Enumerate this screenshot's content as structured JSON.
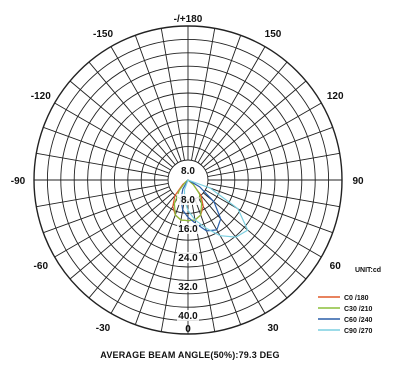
{
  "chart_data": {
    "type": "polar-line",
    "angle_labels": [
      {
        "deg": 180,
        "text": "-/+180"
      },
      {
        "deg": -150,
        "text": "-150"
      },
      {
        "deg": 150,
        "text": "150"
      },
      {
        "deg": -120,
        "text": "-120"
      },
      {
        "deg": 120,
        "text": "120"
      },
      {
        "deg": -90,
        "text": "-90"
      },
      {
        "deg": 90,
        "text": "90"
      },
      {
        "deg": -60,
        "text": "-60"
      },
      {
        "deg": 60,
        "text": "60"
      },
      {
        "deg": -30,
        "text": "-30"
      },
      {
        "deg": 30,
        "text": "30"
      },
      {
        "deg": 0,
        "text": "0"
      }
    ],
    "radial_labels": [
      "8.0",
      "8.0",
      "16.0",
      "24.0",
      "32.0",
      "40.0"
    ],
    "radial_max": 40,
    "rings": 10,
    "spokes_step_deg": 10,
    "unit_label": "UNIT:cd",
    "caption": "AVERAGE BEAM ANGLE(50%):79.3 DEG",
    "series": [
      {
        "name": "C0  /180",
        "color": "#e05a2a",
        "points": [
          [
            -50,
            2
          ],
          [
            -40,
            6
          ],
          [
            -30,
            9
          ],
          [
            -20,
            11
          ],
          [
            -10,
            12
          ],
          [
            0,
            12
          ],
          [
            10,
            12
          ],
          [
            20,
            11
          ],
          [
            30,
            9
          ],
          [
            40,
            6
          ],
          [
            50,
            2
          ]
        ]
      },
      {
        "name": "C30 /210",
        "color": "#8bbf3a",
        "points": [
          [
            -50,
            1
          ],
          [
            -40,
            4
          ],
          [
            -30,
            8
          ],
          [
            -20,
            11
          ],
          [
            -10,
            12
          ],
          [
            0,
            12
          ],
          [
            10,
            12
          ],
          [
            20,
            11
          ],
          [
            30,
            8
          ],
          [
            40,
            5
          ],
          [
            50,
            2
          ]
        ]
      },
      {
        "name": "C60 /240",
        "color": "#2a5fa8",
        "points": [
          [
            -30,
            3
          ],
          [
            -20,
            6
          ],
          [
            -10,
            9
          ],
          [
            0,
            11
          ],
          [
            10,
            13
          ],
          [
            20,
            16
          ],
          [
            30,
            17
          ],
          [
            40,
            15
          ],
          [
            50,
            10
          ],
          [
            60,
            4
          ]
        ]
      },
      {
        "name": "C90 /270",
        "color": "#7ccfe0",
        "points": [
          [
            -20,
            3
          ],
          [
            -10,
            6
          ],
          [
            0,
            9
          ],
          [
            10,
            12
          ],
          [
            20,
            15
          ],
          [
            30,
            19
          ],
          [
            40,
            22
          ],
          [
            50,
            23
          ],
          [
            60,
            17
          ],
          [
            70,
            7
          ]
        ]
      }
    ]
  }
}
